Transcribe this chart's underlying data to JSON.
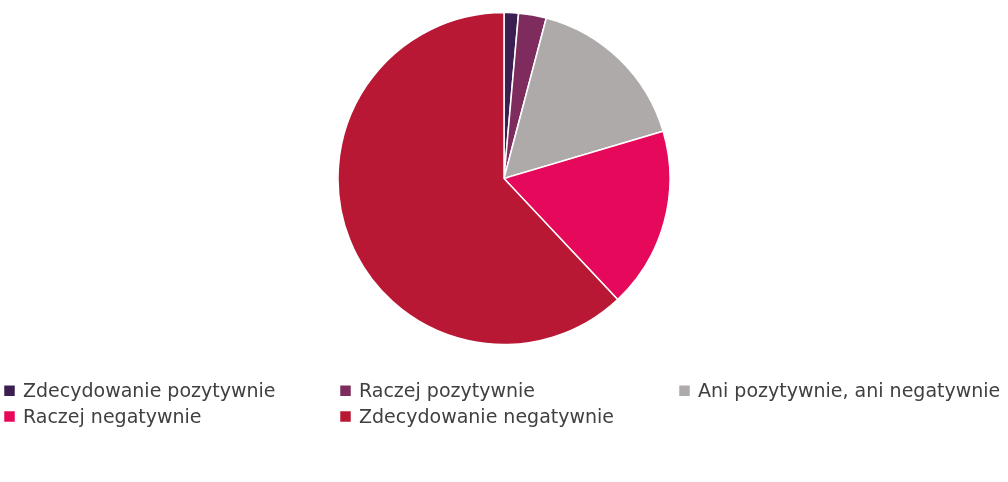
{
  "chart_data": {
    "type": "pie",
    "categories": [
      "Zdecydowanie pozytywnie",
      "Raczej pozytywnie",
      "Ani pozytywnie, ani negatywnie",
      "Raczej negatywnie",
      "Zdecydowanie negatywnie"
    ],
    "values": [
      1.4,
      2.7,
      16.3,
      17.6,
      62.0
    ],
    "colors": [
      "#3c1f50",
      "#7e2c5e",
      "#aeaaaa",
      "#e6085a",
      "#b81834"
    ],
    "legend": "bottom"
  }
}
